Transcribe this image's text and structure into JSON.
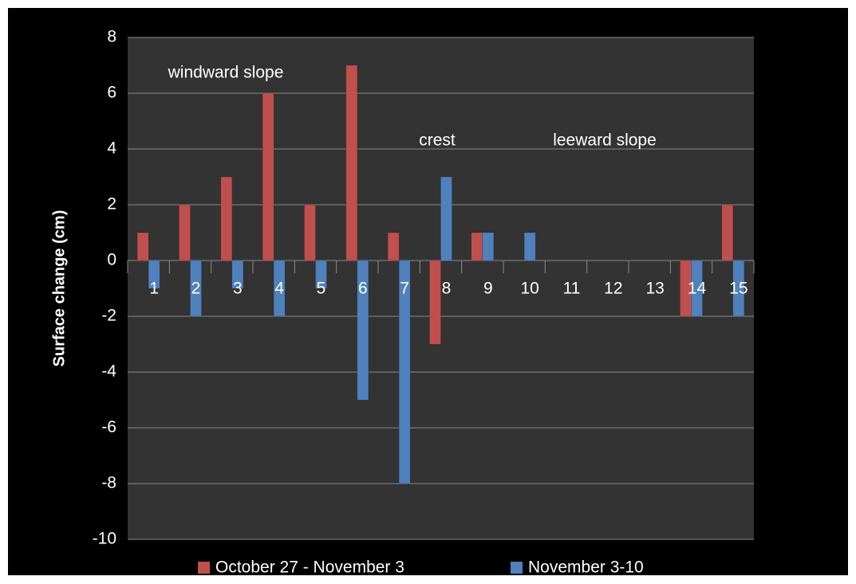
{
  "chart_data": {
    "type": "bar",
    "ylabel": "Surface change (cm)",
    "categories": [
      "1",
      "2",
      "3",
      "4",
      "5",
      "6",
      "7",
      "8",
      "9",
      "10",
      "11",
      "12",
      "13",
      "14",
      "15"
    ],
    "series": [
      {
        "name": "October 27 - November 3",
        "color": "#c0504d",
        "values": [
          1,
          2,
          3,
          6,
          2,
          7,
          1,
          -3,
          1,
          0,
          0,
          0,
          0,
          -2,
          2
        ]
      },
      {
        "name": "November 3-10",
        "color": "#4f81bd",
        "values": [
          -1,
          -2,
          -1,
          -2,
          -1,
          -5,
          -8,
          3,
          1,
          1,
          0,
          0,
          0,
          -2,
          -2
        ]
      }
    ],
    "ylim": [
      -10,
      8
    ],
    "yticks": [
      -10,
      -8,
      -6,
      -4,
      -2,
      0,
      2,
      4,
      6,
      8
    ],
    "grid": true,
    "annotations": [
      "windward slope",
      "crest",
      "leeward slope"
    ],
    "legend": "bottom"
  }
}
